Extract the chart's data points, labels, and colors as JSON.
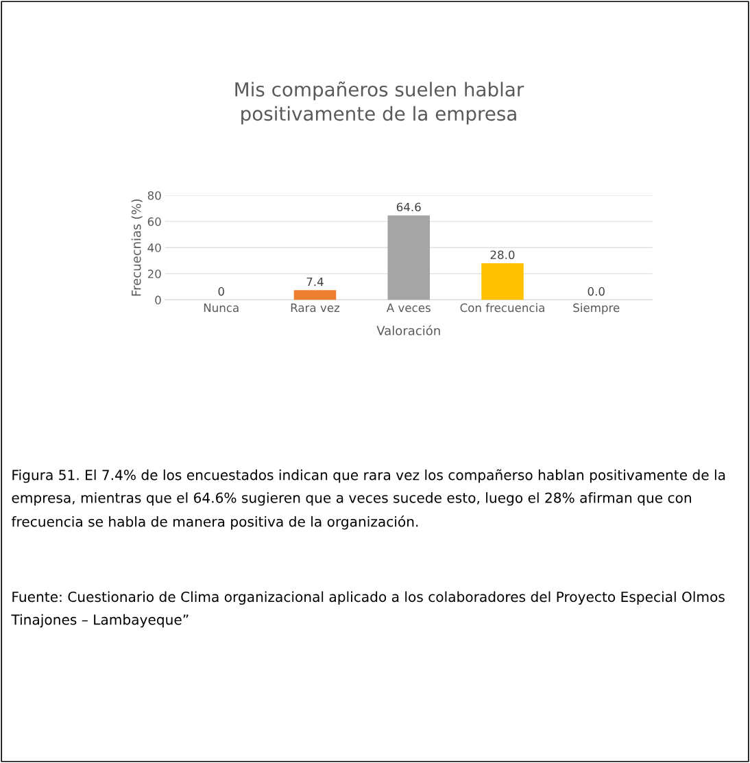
{
  "chart_data": {
    "type": "bar",
    "title": "Mis compañeros suelen hablar\npositivamente de la empresa",
    "xlabel": "Valoración",
    "ylabel": "Frecuecnias (%)",
    "categories": [
      "Nunca",
      "Rara vez",
      "A veces",
      "Con frecuencia",
      "Siempre"
    ],
    "values": [
      0,
      7.4,
      64.6,
      28.0,
      0.0
    ],
    "value_labels": [
      "0",
      "7.4",
      "64.6",
      "28.0",
      "0.0"
    ],
    "colors": [
      "#4a7ebb",
      "#ed7d31",
      "#a5a5a5",
      "#ffc000",
      "#2f5597"
    ],
    "ylim": [
      0,
      80
    ],
    "yticks": [
      0,
      20,
      40,
      60,
      80
    ],
    "grid": "y",
    "legend": false,
    "annotations": [
      "Figura 51. El 7.4% de los encuestados indican que rara vez los compañerso hablan positivamente de la empresa, mientras que el 64.6% sugieren que a veces sucede esto, luego el 28% afirman que con frecuencia se habla de manera positiva de la organización.",
      "Fuente: Cuestionario de Clima organizacional aplicado a los colaboradores del Proyecto Especial Olmos Tinajones – Lambayeque”"
    ]
  }
}
